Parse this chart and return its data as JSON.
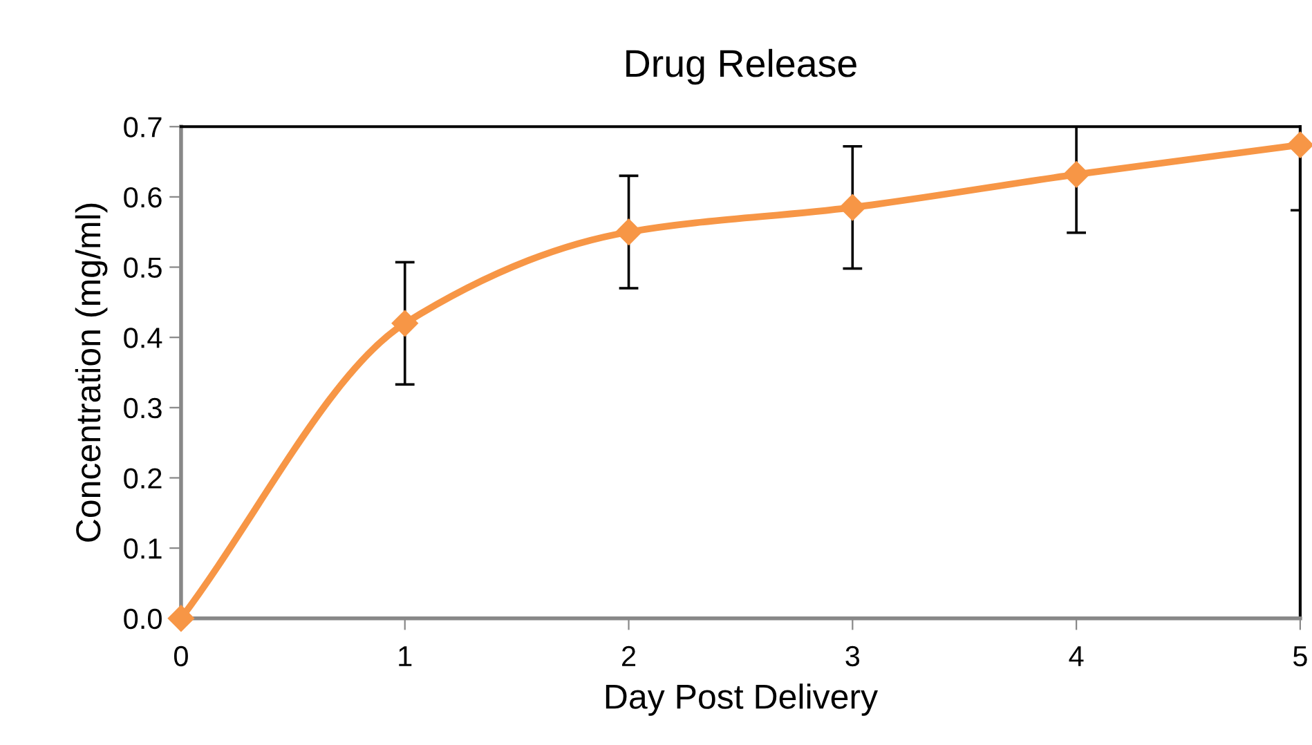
{
  "chart_data": {
    "type": "line",
    "title": "Drug Release",
    "xlabel": "Day Post Delivery",
    "ylabel": "Concentration (mg/ml)",
    "x": [
      0,
      1,
      2,
      3,
      4,
      5
    ],
    "series": [
      {
        "color": "#f79646",
        "values": [
          0,
          0.42,
          0.55,
          0.585,
          0.632,
          0.674
        ],
        "errors": [
          null,
          0.087,
          0.08,
          0.087,
          0.083,
          0.093
        ]
      }
    ],
    "xlim": [
      0,
      5
    ],
    "xticks": [
      0,
      1,
      2,
      3,
      4,
      5
    ],
    "ylim": [
      0,
      0.7
    ],
    "yticks": [
      {
        "value": 0,
        "label": "0.0"
      },
      {
        "value": 0.1,
        "label": "0.1"
      },
      {
        "value": 0.2,
        "label": "0.2"
      },
      {
        "value": 0.3,
        "label": "0.3"
      },
      {
        "value": 0.4,
        "label": "0.4"
      },
      {
        "value": 0.5,
        "label": "0.5"
      },
      {
        "value": 0.6,
        "label": "0.6"
      },
      {
        "value": 0.7,
        "label": "0.7"
      }
    ],
    "marker": "diamond",
    "line_style": "solid",
    "grid": false,
    "legend": false
  }
}
